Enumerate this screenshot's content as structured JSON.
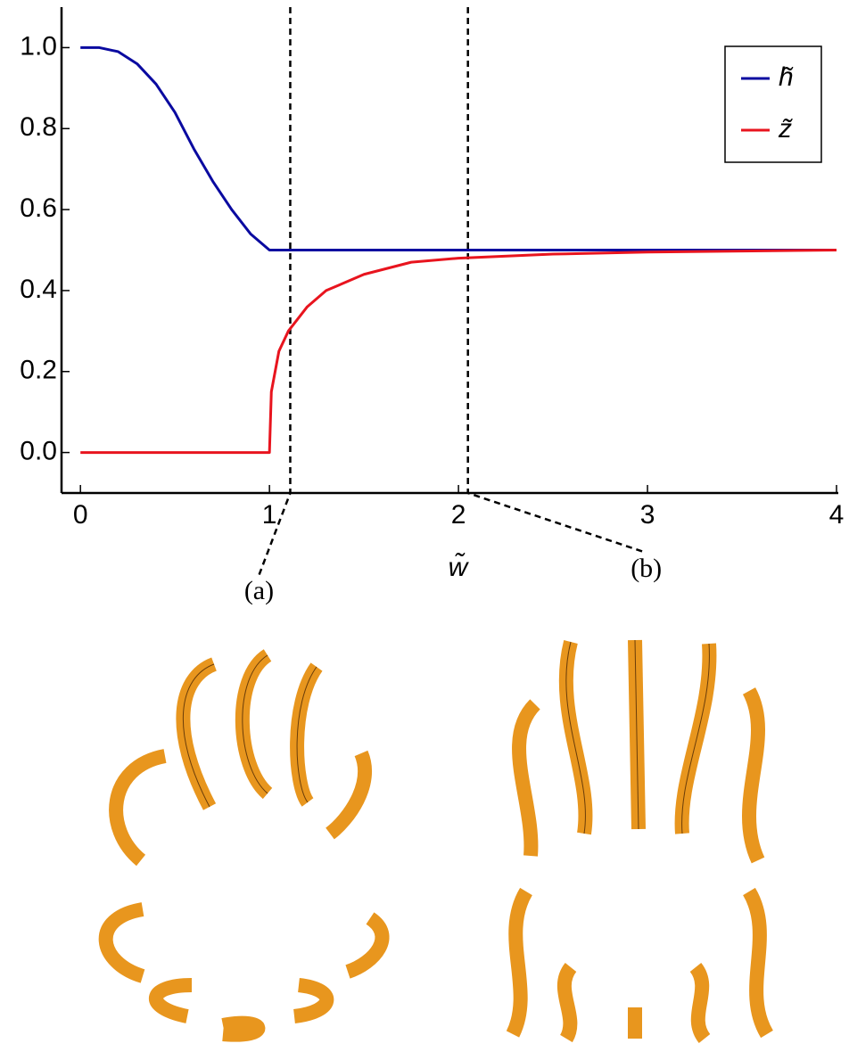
{
  "chart_data": {
    "type": "line",
    "x_label": "w̃",
    "x": [
      0,
      0.1,
      0.2,
      0.3,
      0.4,
      0.5,
      0.6,
      0.7,
      0.8,
      0.9,
      1.0,
      1.01,
      1.05,
      1.1,
      1.2,
      1.3,
      1.5,
      1.75,
      2.0,
      2.5,
      3.0,
      4.0
    ],
    "series": [
      {
        "name": "h̃",
        "color": "#0a0aa0",
        "values": [
          1.0,
          1.0,
          0.99,
          0.96,
          0.91,
          0.84,
          0.75,
          0.67,
          0.6,
          0.54,
          0.5,
          0.5,
          0.5,
          0.5,
          0.5,
          0.5,
          0.5,
          0.5,
          0.5,
          0.5,
          0.5,
          0.5
        ]
      },
      {
        "name": "z̃",
        "color": "#e8141e",
        "values": [
          0,
          0,
          0,
          0,
          0,
          0,
          0,
          0,
          0,
          0,
          0,
          0.15,
          0.25,
          0.3,
          0.36,
          0.4,
          0.44,
          0.47,
          0.48,
          0.49,
          0.495,
          0.5
        ]
      }
    ],
    "xlim": [
      -0.1,
      4.0
    ],
    "ylim": [
      -0.1,
      1.1
    ],
    "xticks": [
      0,
      1,
      2,
      3,
      4
    ],
    "yticks": [
      {
        "value": 0,
        "label": "0.0"
      },
      {
        "value": 0.2,
        "label": "0.2"
      },
      {
        "value": 0.4,
        "label": "0.4"
      },
      {
        "value": 0.6,
        "label": "0.6"
      },
      {
        "value": 0.8,
        "label": "0.8"
      },
      {
        "value": 1.0,
        "label": "1.0"
      }
    ],
    "legend": "top-right",
    "annotations": [
      {
        "label": "(a)",
        "x": 1.11
      },
      {
        "label": "(b)",
        "x": 2.05
      }
    ]
  }
}
